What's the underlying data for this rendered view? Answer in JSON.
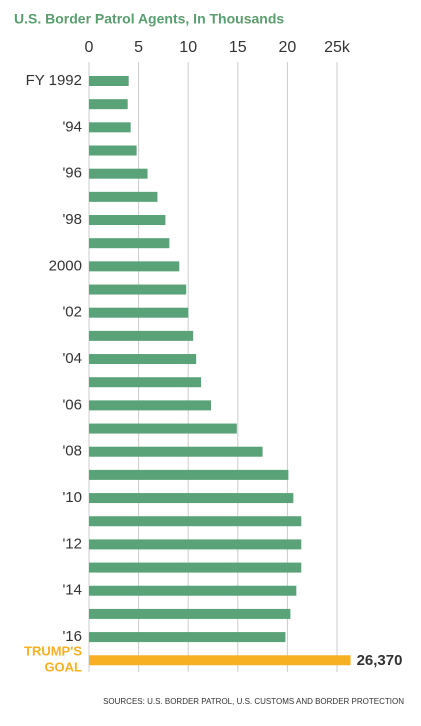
{
  "chart_data": {
    "type": "barh",
    "title": "U.S. Border Patrol Agents, In Thousands",
    "categories": [
      "FY 1992",
      null,
      "'94",
      null,
      "'96",
      null,
      "'98",
      null,
      "2000",
      null,
      "'02",
      null,
      "'04",
      null,
      "'06",
      null,
      "'08",
      null,
      "'10",
      null,
      "'12",
      null,
      "'14",
      null,
      "'16",
      "TRUMP'S GOAL"
    ],
    "values": [
      4.0,
      3.9,
      4.2,
      4.8,
      5.9,
      6.9,
      7.7,
      8.1,
      9.1,
      9.8,
      10.0,
      10.5,
      10.8,
      11.3,
      12.3,
      14.9,
      17.5,
      20.1,
      20.6,
      21.4,
      21.4,
      21.4,
      20.9,
      20.3,
      19.8,
      26.37
    ],
    "value_labels": [
      null,
      null,
      null,
      null,
      null,
      null,
      null,
      null,
      null,
      null,
      null,
      null,
      null,
      null,
      null,
      null,
      null,
      null,
      null,
      null,
      null,
      null,
      null,
      null,
      null,
      "26,370"
    ],
    "color": "#5aa378",
    "highlight_color": "#f7b022",
    "highlight_index": 25,
    "xlim": [
      0,
      25.5
    ],
    "xticks": [
      0,
      5,
      10,
      15,
      20,
      {
        "value": 25,
        "label": "25k"
      }
    ],
    "grid": true,
    "source": "SOURCES: U.S. BORDER PATROL, U.S. CUSTOMS AND BORDER PROTECTION"
  }
}
